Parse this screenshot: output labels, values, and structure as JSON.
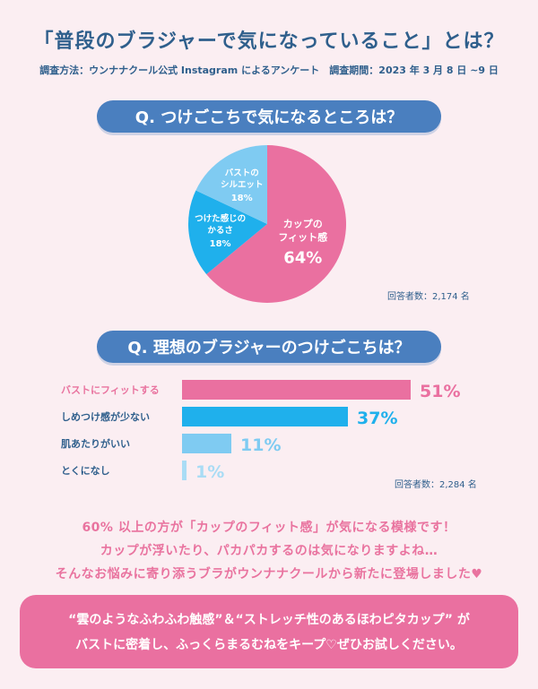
{
  "title": "「普段のブラジャーで気になっていること」とは？",
  "subtitle": "調査方法：ウンナナクール公式 Instagram によるアンケート　調査期間：2023 年 3 月 8 日 ~9 日",
  "colors": {
    "pink": "#ea70a0",
    "blue": "#1fb0ec",
    "lightblue": "#7fcbf2",
    "navy": "#2f5f8c",
    "pill": "#4a7fbf"
  },
  "chart_data": [
    {
      "type": "pie",
      "title": "Q. つけごこちで気になるところは？",
      "slices": [
        {
          "label_lines": [
            "カップの",
            "フィット感"
          ],
          "value": 64,
          "value_label": "64%",
          "color": "#ea70a0"
        },
        {
          "label_lines": [
            "つけた感じの",
            "かるさ"
          ],
          "value": 18,
          "value_label": "18%",
          "color": "#1fb0ec"
        },
        {
          "label_lines": [
            "バストの",
            "シルエット"
          ],
          "value": 18,
          "value_label": "18%",
          "color": "#7fcbf2"
        }
      ],
      "respondents": "回答者数：2,174 名"
    },
    {
      "type": "bar",
      "orientation": "horizontal",
      "title": "Q. 理想のブラジャーのつけごこちは？",
      "categories": [
        "バストにフィットする",
        "しめつけ感が少ない",
        "肌あたりがいい",
        "とくになし"
      ],
      "values": [
        51,
        37,
        11,
        1
      ],
      "value_labels": [
        "51%",
        "37%",
        "11%",
        "1%"
      ],
      "colors": [
        "#ea70a0",
        "#1fb0ec",
        "#7fcbf2",
        "#a9dcf5"
      ],
      "label_colors": [
        "#ea70a0",
        "#1fb0ec",
        "#7fcbf2",
        "#a9dcf5"
      ],
      "category_colors": [
        "#e9739f",
        "#2f5f8c",
        "#2f5f8c",
        "#2f5f8c"
      ],
      "respondents": "回答者数：2,284 名"
    }
  ],
  "summary": [
    "60% 以上の方が「カップのフィット感」が気になる模様です！",
    "カップが浮いたり、パカパカするのは気になりますよね…",
    "そんなお悩みに寄り添うブラがウンナナクールから新たに登場しました♥"
  ],
  "callout": [
    "“雲のようなふわふわ触感”＆“ストレッチ性のあるほわピタカップ” が",
    "バストに密着し、ふっくらまるむねをキープ♡ぜひお試しください。"
  ]
}
